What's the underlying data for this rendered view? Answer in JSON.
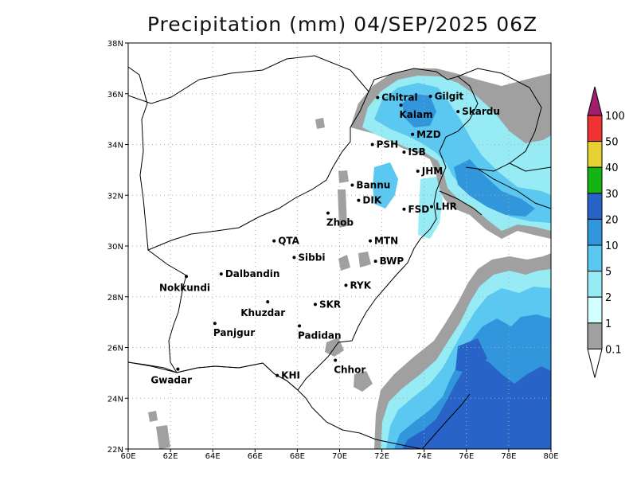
{
  "title": "Precipitation (mm) 04/SEP/2025 06Z",
  "axes": {
    "lon_ticks": [
      "60E",
      "62E",
      "64E",
      "66E",
      "68E",
      "70E",
      "72E",
      "74E",
      "76E",
      "78E",
      "80E"
    ],
    "lat_ticks": [
      "22N",
      "24N",
      "26N",
      "28N",
      "30N",
      "32N",
      "34N",
      "36N",
      "38N"
    ],
    "lon_range": [
      60,
      80
    ],
    "lat_range": [
      22,
      38
    ],
    "grid": "dotted"
  },
  "cities": [
    {
      "name": "Chitral",
      "lon": 71.8,
      "lat": 35.85
    },
    {
      "name": "Gilgit",
      "lon": 74.3,
      "lat": 35.9
    },
    {
      "name": "Kalam",
      "lon": 72.9,
      "lat": 35.55
    },
    {
      "name": "Skardu",
      "lon": 75.6,
      "lat": 35.3
    },
    {
      "name": "MZD",
      "lon": 73.45,
      "lat": 34.4
    },
    {
      "name": "PSH",
      "lon": 71.55,
      "lat": 34.0
    },
    {
      "name": "ISB",
      "lon": 73.05,
      "lat": 33.7
    },
    {
      "name": "JHM",
      "lon": 73.7,
      "lat": 32.95
    },
    {
      "name": "Bannu",
      "lon": 70.6,
      "lat": 32.4
    },
    {
      "name": "DIK",
      "lon": 70.9,
      "lat": 31.8
    },
    {
      "name": "FSD",
      "lon": 73.05,
      "lat": 31.45
    },
    {
      "name": "LHR",
      "lon": 74.35,
      "lat": 31.55
    },
    {
      "name": "Zhob",
      "lon": 69.45,
      "lat": 31.3
    },
    {
      "name": "QTA",
      "lon": 66.9,
      "lat": 30.2
    },
    {
      "name": "MTN",
      "lon": 71.45,
      "lat": 30.2
    },
    {
      "name": "Sibbi",
      "lon": 67.85,
      "lat": 29.55
    },
    {
      "name": "BWP",
      "lon": 71.7,
      "lat": 29.4
    },
    {
      "name": "Dalbandin",
      "lon": 64.4,
      "lat": 28.9
    },
    {
      "name": "Nokkundi",
      "lon": 62.75,
      "lat": 28.8
    },
    {
      "name": "RYK",
      "lon": 70.3,
      "lat": 28.45
    },
    {
      "name": "Khuzdar",
      "lon": 66.6,
      "lat": 27.8
    },
    {
      "name": "SKR",
      "lon": 68.85,
      "lat": 27.7
    },
    {
      "name": "Panjgur",
      "lon": 64.1,
      "lat": 26.95
    },
    {
      "name": "Padidan",
      "lon": 68.1,
      "lat": 26.85
    },
    {
      "name": "Chhor",
      "lon": 69.8,
      "lat": 25.5
    },
    {
      "name": "KHI",
      "lon": 67.05,
      "lat": 24.9
    },
    {
      "name": "Gwadar",
      "lon": 62.35,
      "lat": 25.15
    }
  ],
  "colorbar": {
    "levels": [
      "0.1",
      "1",
      "2",
      "5",
      "10",
      "20",
      "30",
      "40",
      "50",
      "100"
    ],
    "colors": [
      "#a0a0a0",
      "#d2ffff",
      "#96ebf5",
      "#5ac8f0",
      "#3296dc",
      "#2864c8",
      "#14b414",
      "#e6d232",
      "#f03232",
      "#a01e6e"
    ],
    "under_color": "#ffffff",
    "over_color": "#a01e6e"
  },
  "precip_legend": {
    "gray": "#a0a0a0",
    "light_cyan": "#96ebf5",
    "sky": "#5ac8f0",
    "blue": "#3296dc",
    "dark_blue": "#2864c8"
  }
}
